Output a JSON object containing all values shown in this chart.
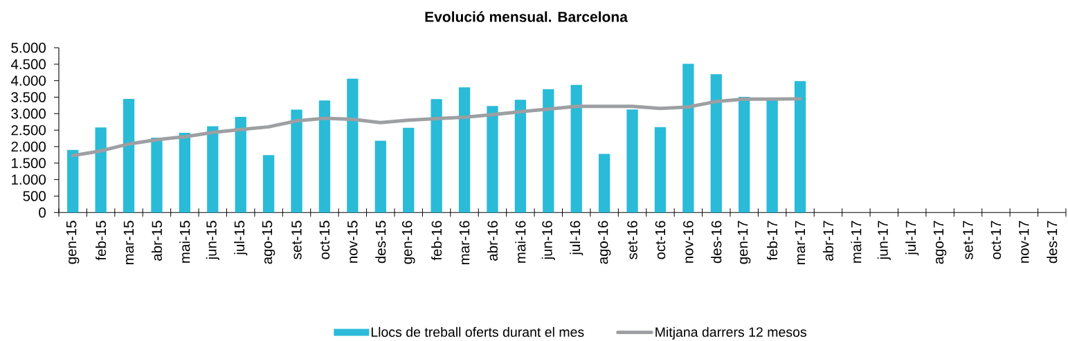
{
  "chart_data": {
    "type": "bar",
    "title": "Evolució mensual. Barcelona",
    "categories": [
      "gen-15",
      "feb-15",
      "mar-15",
      "abr-15",
      "mai-15",
      "jun-15",
      "jul-15",
      "ago-15",
      "set-15",
      "oct-15",
      "nov-15",
      "des-15",
      "gen-16",
      "feb-16",
      "mar-16",
      "abr-16",
      "mai-16",
      "jun-16",
      "jul-16",
      "ago-16",
      "set-16",
      "oct-16",
      "nov-16",
      "des-16",
      "gen-17",
      "feb-17",
      "mar-17",
      "abr-17",
      "mai-17",
      "jun-17",
      "jul-17",
      "ago-17",
      "set-17",
      "oct-17",
      "nov-17",
      "des-17"
    ],
    "series": [
      {
        "name": "Llocs de treball oferts durant el mes",
        "color": "#29bbd8",
        "values": [
          1900,
          2580,
          3450,
          2270,
          2420,
          2620,
          2900,
          1740,
          3120,
          3400,
          4060,
          2180,
          2570,
          3440,
          3800,
          3230,
          3420,
          3740,
          3870,
          1780,
          3130,
          2590,
          4510,
          4200,
          3510,
          3430,
          3990,
          null,
          null,
          null,
          null,
          null,
          null,
          null,
          null,
          null
        ]
      },
      {
        "name": "Mitjana darrers 12 mesos",
        "type": "line",
        "color": "#9d9fa2",
        "values": [
          1730,
          1870,
          2080,
          2210,
          2300,
          2430,
          2520,
          2600,
          2780,
          2860,
          2830,
          2730,
          2800,
          2850,
          2890,
          2970,
          3060,
          3140,
          3220,
          3220,
          3220,
          3160,
          3200,
          3370,
          3440,
          3440,
          3450,
          null,
          null,
          null,
          null,
          null,
          null,
          null,
          null,
          null
        ]
      }
    ],
    "ylim": [
      0,
      5000
    ],
    "yticks": [
      0,
      500,
      {
        "value": 1000,
        "label": "1.000"
      },
      {
        "value": 1500,
        "label": "1.500"
      },
      {
        "value": 2000,
        "label": "2.000"
      },
      {
        "value": 2500,
        "label": "2.500"
      },
      {
        "value": 3000,
        "label": "3.000"
      },
      {
        "value": 3500,
        "label": "3.500"
      },
      {
        "value": 4000,
        "label": "4.000"
      },
      {
        "value": 4500,
        "label": "4.500"
      },
      {
        "value": 5000,
        "label": "5.000"
      }
    ],
    "legend": "bottom",
    "marker": "none",
    "line_style": "solid"
  }
}
